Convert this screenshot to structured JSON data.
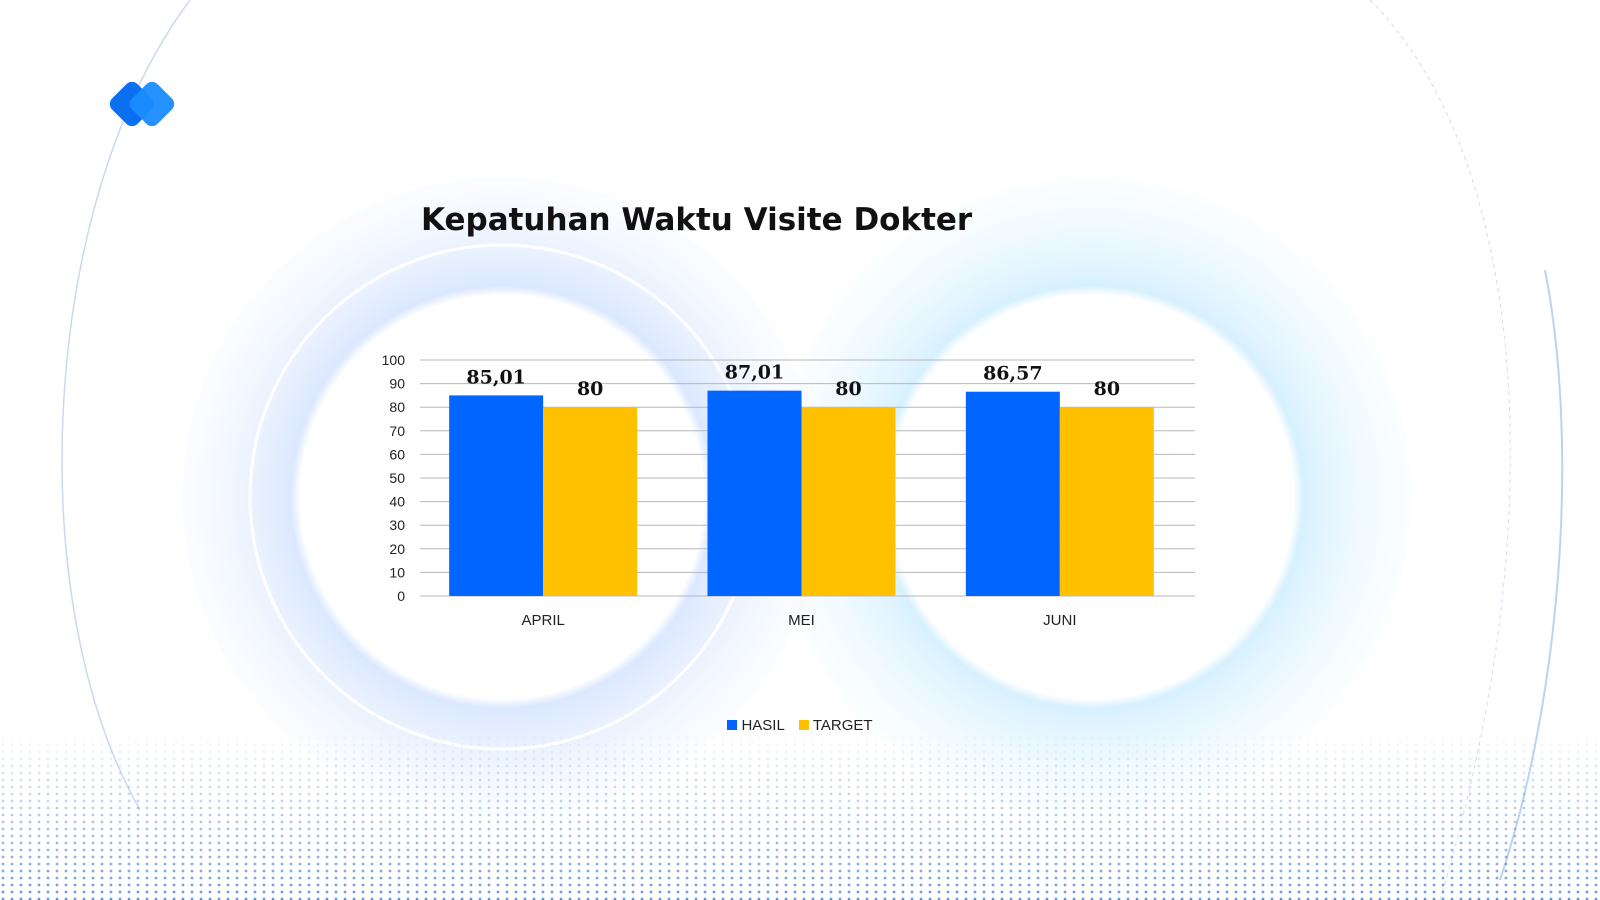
{
  "colors": {
    "hasil": "#0066FF",
    "target": "#FFC000",
    "logo_front": "#1a8cff",
    "logo_back": "#0a6ff0",
    "grid": "#b8b8b8"
  },
  "chart_data": {
    "type": "bar",
    "title": "Kepatuhan Waktu Visite Dokter",
    "categories": [
      "APRIL",
      "MEI",
      "JUNI"
    ],
    "series": [
      {
        "name": "HASIL",
        "values": [
          85.01,
          87.01,
          86.57
        ],
        "labels": [
          "85,01",
          "87,01",
          "86,57"
        ]
      },
      {
        "name": "TARGET",
        "values": [
          80,
          80,
          80
        ],
        "labels": [
          "80",
          "80",
          "80"
        ]
      }
    ],
    "ylim": [
      0,
      100
    ],
    "yticks": [
      0,
      10,
      20,
      30,
      40,
      50,
      60,
      70,
      80,
      90,
      100
    ],
    "grid": true,
    "legend_position": "bottom"
  }
}
